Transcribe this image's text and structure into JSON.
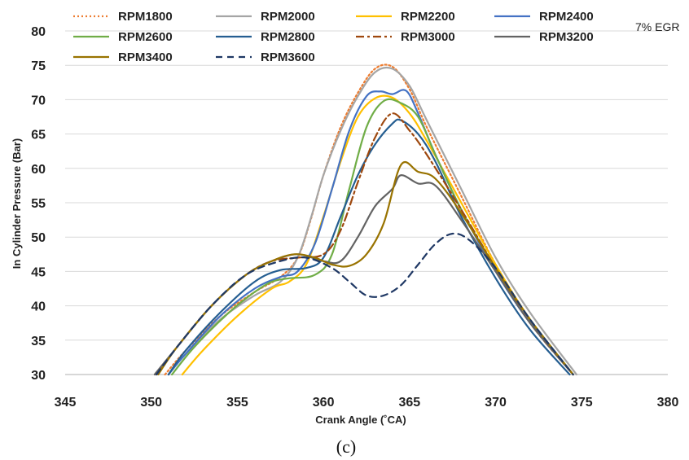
{
  "chart_data": {
    "type": "line",
    "xlabel": "Crank Angle (˚CA)",
    "ylabel": "In Cylinder Pressure (Bar)",
    "xlim": [
      345,
      380
    ],
    "ylim": [
      30,
      80
    ],
    "xticks": [
      345,
      350,
      355,
      360,
      365,
      370,
      375,
      380
    ],
    "yticks": [
      30,
      35,
      40,
      45,
      50,
      55,
      60,
      65,
      70,
      75,
      80
    ],
    "annotation": "7% EGR",
    "caption": "(c)",
    "grid": "horizontal",
    "legend_position": "top",
    "series": [
      {
        "name": "RPM1800",
        "color": "#ED7D31",
        "dash": "dotted",
        "x": [
          350.8,
          352,
          354,
          356,
          357.5,
          358.5,
          359.2,
          360,
          361,
          362,
          363,
          364,
          365,
          366,
          368,
          370,
          372,
          374.5
        ],
        "y": [
          30,
          33.5,
          38.5,
          42,
          44.2,
          47,
          52,
          59,
          66,
          71,
          74.5,
          74.8,
          71.5,
          66,
          56,
          46,
          38,
          30
        ]
      },
      {
        "name": "RPM2000",
        "color": "#A5A5A5",
        "dash": "solid",
        "x": [
          351,
          352,
          354,
          356,
          357.5,
          358.5,
          359.3,
          360,
          361,
          362,
          363,
          364,
          365,
          366,
          368,
          370,
          372,
          374.7
        ],
        "y": [
          30,
          33,
          38,
          41.5,
          43.5,
          47,
          53,
          59,
          65.5,
          70.5,
          74,
          74.5,
          72,
          67,
          57,
          47,
          39,
          30
        ]
      },
      {
        "name": "RPM2200",
        "color": "#FFC000",
        "dash": "solid",
        "x": [
          351.8,
          353,
          355,
          357,
          358,
          359,
          360,
          361,
          362,
          363,
          364,
          365,
          366,
          368,
          370,
          372,
          374.5
        ],
        "y": [
          30,
          33.5,
          38.5,
          42.5,
          43.5,
          46,
          53,
          61,
          67.5,
          70.2,
          70.3,
          68,
          64,
          55,
          46,
          38,
          30
        ]
      },
      {
        "name": "RPM2400",
        "color": "#4472C4",
        "dash": "solid",
        "x": [
          351,
          352,
          354,
          356,
          357.5,
          358.5,
          359.5,
          360.5,
          361.5,
          362.5,
          363.3,
          364,
          364.8,
          365.5,
          366.5,
          368,
          370,
          372,
          374.5
        ],
        "y": [
          30,
          33,
          38.5,
          42.5,
          44.2,
          45,
          49,
          57,
          65.5,
          70.5,
          71.2,
          70.8,
          71.3,
          68,
          62,
          54,
          45,
          37.5,
          30
        ]
      },
      {
        "name": "RPM2600",
        "color": "#70AD47",
        "dash": "solid",
        "x": [
          351.2,
          352.5,
          354.5,
          356,
          357,
          358,
          359.5,
          360.5,
          361.5,
          362.5,
          363.5,
          364.5,
          365.5,
          366.5,
          368,
          370,
          372,
          374.5
        ],
        "y": [
          30,
          34,
          39,
          42,
          43.5,
          44,
          44.5,
          47.5,
          57,
          66,
          69.8,
          69.5,
          67.5,
          62,
          54,
          45.5,
          38,
          30
        ]
      },
      {
        "name": "RPM2800",
        "color": "#255E91",
        "dash": "solid",
        "x": [
          351,
          352,
          354,
          356,
          357.5,
          359,
          360,
          361,
          362,
          363,
          364,
          364.5,
          365.5,
          366.5,
          368,
          370,
          372,
          374.3
        ],
        "y": [
          30,
          33.5,
          39,
          43.5,
          45.2,
          45.5,
          47,
          53,
          59,
          63.5,
          66.5,
          67,
          65,
          61,
          53,
          44,
          36.5,
          30
        ]
      },
      {
        "name": "RPM3000",
        "color": "#9E480E",
        "dash": "dashdot",
        "x": [
          350.3,
          351.5,
          353.5,
          355.5,
          357,
          358.5,
          360,
          361,
          362,
          363,
          364,
          365,
          366,
          368,
          370,
          372,
          374.5
        ],
        "y": [
          30,
          34,
          40,
          44.5,
          46.5,
          47,
          47.5,
          51,
          58,
          64.5,
          68,
          65.5,
          62,
          54,
          45.5,
          37.5,
          30
        ]
      },
      {
        "name": "RPM3200",
        "color": "#636363",
        "dash": "solid",
        "x": [
          350.2,
          351.5,
          353.5,
          355.5,
          357,
          358.5,
          360,
          361,
          362,
          363,
          364,
          364.5,
          365.5,
          366.5,
          368,
          370,
          372,
          374.5
        ],
        "y": [
          30,
          34,
          40,
          44.5,
          46.5,
          47.5,
          46.5,
          46.5,
          50,
          54.5,
          57,
          59,
          57.8,
          57.5,
          52.5,
          45,
          37.5,
          30
        ]
      },
      {
        "name": "RPM3400",
        "color": "#997300",
        "dash": "solid",
        "x": [
          350.4,
          351.5,
          353.5,
          355.5,
          357,
          358.3,
          359.5,
          360.5,
          361.5,
          362.5,
          363.5,
          364.5,
          365.5,
          366.5,
          368,
          370,
          372,
          374.5
        ],
        "y": [
          30,
          34,
          40,
          44.5,
          46.5,
          47.5,
          47,
          46,
          45.8,
          47.5,
          52,
          60.5,
          59.5,
          58.5,
          53.5,
          45.5,
          38,
          30
        ]
      },
      {
        "name": "RPM3600",
        "color": "#1F3864",
        "dash": "dashed",
        "x": [
          350.3,
          351.5,
          353.5,
          355.5,
          357.5,
          359,
          360.5,
          361.5,
          362.5,
          363.5,
          364.5,
          365.5,
          366.5,
          367.5,
          368.5,
          370,
          372,
          374.5
        ],
        "y": [
          30,
          34,
          40,
          44.5,
          46.5,
          47,
          45.5,
          43.5,
          41.5,
          41.5,
          43,
          46,
          49,
          50.5,
          49.5,
          45.5,
          38,
          30
        ]
      }
    ]
  }
}
